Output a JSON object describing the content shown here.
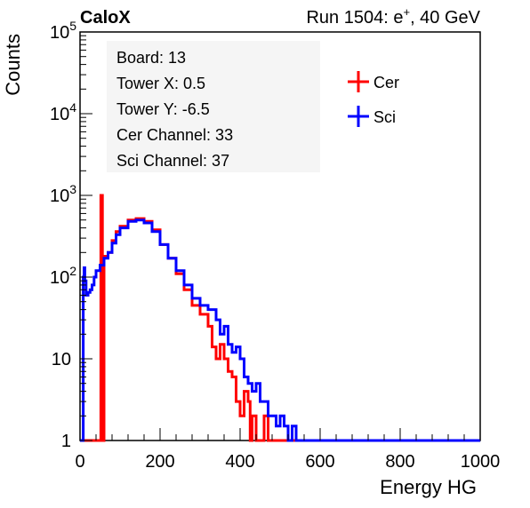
{
  "header": {
    "left_title": "CaloX",
    "right_title_prefix": "Run 1504: e",
    "right_title_sup": "+",
    "right_title_suffix": ", 40 GeV"
  },
  "info_box": {
    "lines": [
      "Board: 13",
      "Tower X: 0.5",
      "Tower Y: -6.5",
      "Cer Channel: 33",
      "Sci Channel: 37"
    ]
  },
  "chart_data": {
    "type": "line",
    "title": "",
    "xlabel": "Energy HG",
    "ylabel": "Counts",
    "xlim": [
      0,
      1000
    ],
    "ylim": [
      1,
      100000
    ],
    "yscale": "log",
    "x_ticks": [
      0,
      200,
      400,
      600,
      800,
      1000
    ],
    "y_ticks": [
      {
        "value": 1,
        "base": "1",
        "exp": ""
      },
      {
        "value": 10,
        "base": "10",
        "exp": ""
      },
      {
        "value": 100,
        "base": "10",
        "exp": "2"
      },
      {
        "value": 1000,
        "base": "10",
        "exp": "3"
      },
      {
        "value": 10000,
        "base": "10",
        "exp": "4"
      },
      {
        "value": 100000,
        "base": "10",
        "exp": "5"
      }
    ],
    "legend": {
      "placement": "top-right"
    },
    "series": [
      {
        "name": "Cer",
        "color": "#ff0000",
        "x": [
          0,
          50,
          52,
          54,
          56,
          58,
          60,
          70,
          80,
          90,
          100,
          120,
          140,
          160,
          180,
          200,
          220,
          240,
          260,
          280,
          300,
          320,
          330,
          340,
          350,
          360,
          370,
          380,
          390,
          400,
          410,
          420,
          425,
          430,
          440,
          450,
          460,
          470,
          480,
          500,
          520,
          530,
          540,
          560,
          600,
          700,
          800,
          900,
          1000
        ],
        "y": [
          1,
          1,
          1000,
          1000,
          1,
          1,
          180,
          200,
          280,
          360,
          420,
          500,
          520,
          480,
          380,
          250,
          170,
          110,
          70,
          45,
          35,
          25,
          14,
          10,
          15,
          10,
          7,
          6,
          3,
          2,
          4,
          3,
          1,
          2,
          1,
          1,
          2,
          1,
          1,
          1,
          1,
          1,
          1,
          1,
          1,
          1,
          1,
          1,
          1
        ]
      },
      {
        "name": "Sci",
        "color": "#0000ff",
        "x": [
          0,
          5,
          8,
          10,
          12,
          15,
          20,
          25,
          30,
          35,
          40,
          50,
          60,
          70,
          80,
          90,
          100,
          120,
          140,
          160,
          180,
          200,
          220,
          240,
          260,
          280,
          300,
          320,
          340,
          350,
          360,
          370,
          380,
          390,
          400,
          410,
          420,
          430,
          440,
          450,
          460,
          470,
          480,
          490,
          500,
          510,
          520,
          530,
          540,
          560,
          600,
          700,
          800,
          900,
          1000
        ],
        "y": [
          1,
          1,
          100,
          130,
          90,
          60,
          65,
          70,
          80,
          100,
          120,
          140,
          170,
          200,
          260,
          330,
          400,
          480,
          500,
          460,
          360,
          250,
          170,
          120,
          80,
          55,
          45,
          40,
          30,
          20,
          25,
          15,
          12,
          14,
          10,
          6,
          5,
          4,
          5,
          3,
          3,
          2,
          2,
          1.5,
          2,
          1.5,
          1,
          1.5,
          1,
          1,
          1,
          1,
          1,
          1,
          1
        ]
      }
    ]
  }
}
